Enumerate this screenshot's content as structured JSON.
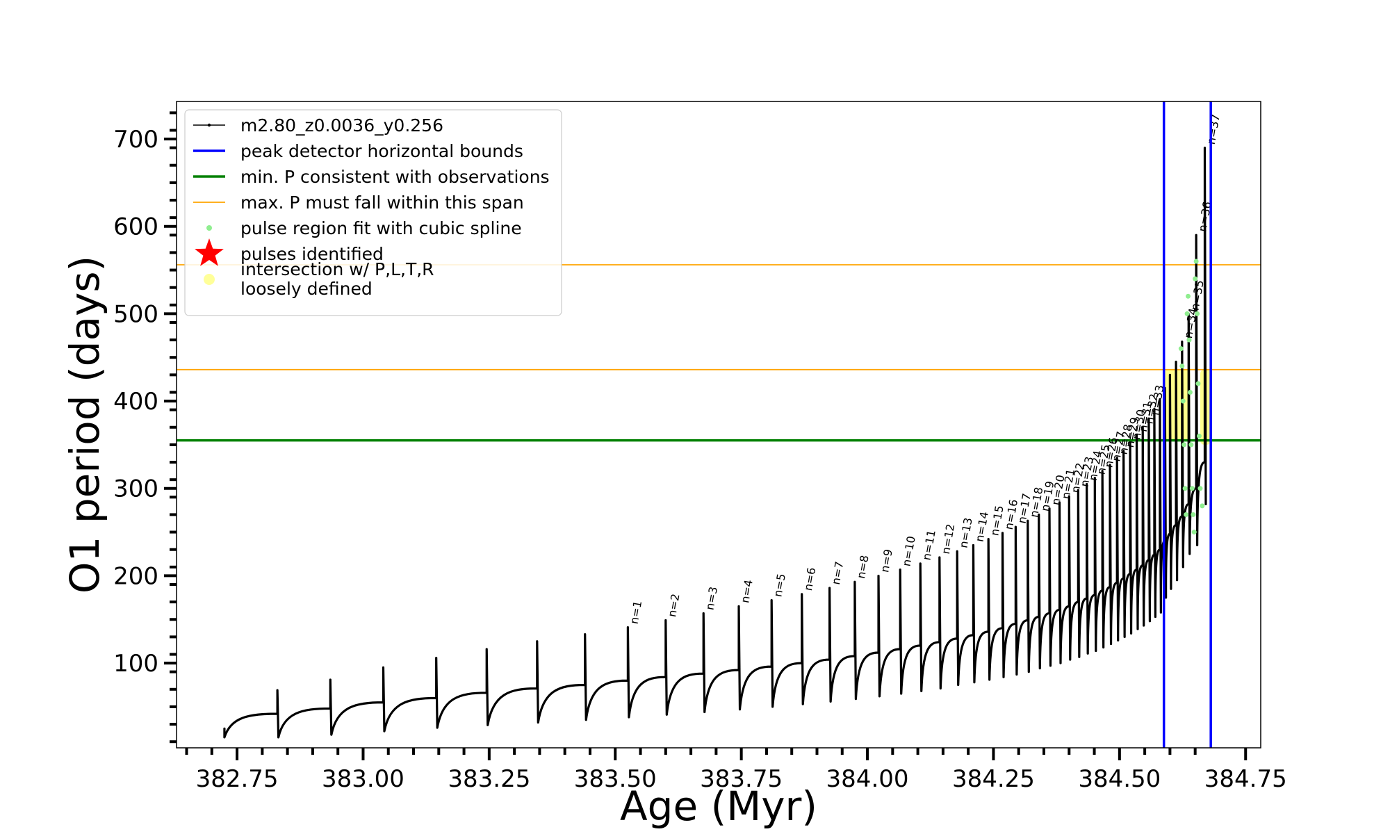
{
  "chart_data": {
    "type": "line",
    "xlabel": "Age (Myr)",
    "ylabel": "O1 period (days)",
    "xlim": [
      382.63,
      384.78
    ],
    "ylim": [
      3,
      743
    ],
    "x_ticks": [
      382.75,
      383.0,
      383.25,
      383.5,
      383.75,
      384.0,
      384.25,
      384.5,
      384.75
    ],
    "x_tick_labels": [
      "382.75",
      "383.00",
      "383.25",
      "383.50",
      "383.75",
      "384.00",
      "384.25",
      "384.50",
      "384.75"
    ],
    "y_ticks": [
      100,
      200,
      300,
      400,
      500,
      600,
      700
    ],
    "y_tick_labels": [
      "100",
      "200",
      "300",
      "400",
      "500",
      "600",
      "700"
    ],
    "grid": false,
    "legend_position": "top-left",
    "legend": [
      {
        "label": "m2.80_z0.0036_y0.256",
        "kind": "line-marker",
        "color": "#000000"
      },
      {
        "label": "peak detector horizontal bounds",
        "kind": "line",
        "color": "#0000ff"
      },
      {
        "label": "min. P consistent with observations",
        "kind": "line",
        "color": "#008000"
      },
      {
        "label": "max. P must fall within this span",
        "kind": "line",
        "color": "#ffa500"
      },
      {
        "label": "pulse region fit with cubic spline",
        "kind": "dot",
        "color": "#90ee90"
      },
      {
        "label": "pulses identified",
        "kind": "star",
        "color": "#ff0000"
      },
      {
        "label": "intersection w/ P,L,T,R",
        "label2": "loosely defined",
        "kind": "dot",
        "color": "#ffff99"
      }
    ],
    "vlines": [
      {
        "x": 384.588,
        "color": "#0000ff",
        "series": "peak detector horizontal bounds"
      },
      {
        "x": 384.681,
        "color": "#0000ff",
        "series": "peak detector horizontal bounds"
      }
    ],
    "hlines": [
      {
        "y": 355,
        "color": "#008000",
        "series": "min. P consistent with observations"
      },
      {
        "y": 436,
        "color": "#ffa500",
        "series": "max. P must fall within this span"
      },
      {
        "y": 556,
        "color": "#ffa500",
        "series": "max. P must fall within this span"
      }
    ],
    "series_name": "m2.80_z0.0036_y0.256",
    "series_color": "#000000",
    "track_start": {
      "x": 382.725,
      "y": 15
    },
    "pulses": [
      {
        "x": 382.83,
        "base": 42,
        "peak": 69,
        "dip": 15,
        "label": ""
      },
      {
        "x": 382.935,
        "base": 48,
        "peak": 81,
        "dip": 18,
        "label": ""
      },
      {
        "x": 383.04,
        "base": 55,
        "peak": 95,
        "dip": 22,
        "label": ""
      },
      {
        "x": 383.145,
        "base": 60,
        "peak": 106,
        "dip": 26,
        "label": ""
      },
      {
        "x": 383.245,
        "base": 66,
        "peak": 116,
        "dip": 29,
        "label": ""
      },
      {
        "x": 383.345,
        "base": 71,
        "peak": 125,
        "dip": 32,
        "label": ""
      },
      {
        "x": 383.44,
        "base": 75,
        "peak": 133,
        "dip": 35,
        "label": ""
      },
      {
        "x": 383.525,
        "base": 80,
        "peak": 141,
        "dip": 38,
        "label": "n=1"
      },
      {
        "x": 383.6,
        "base": 84,
        "peak": 149,
        "dip": 41,
        "label": "n=2"
      },
      {
        "x": 383.675,
        "base": 88,
        "peak": 157,
        "dip": 44,
        "label": "n=3"
      },
      {
        "x": 383.745,
        "base": 92,
        "peak": 165,
        "dip": 47,
        "label": "n=4"
      },
      {
        "x": 383.81,
        "base": 96,
        "peak": 172,
        "dip": 50,
        "label": "n=5"
      },
      {
        "x": 383.87,
        "base": 100,
        "peak": 179,
        "dip": 53,
        "label": "n=6"
      },
      {
        "x": 383.925,
        "base": 104,
        "peak": 186,
        "dip": 56,
        "label": "n=7"
      },
      {
        "x": 383.975,
        "base": 108,
        "peak": 193,
        "dip": 59,
        "label": "n=8"
      },
      {
        "x": 384.022,
        "base": 112,
        "peak": 200,
        "dip": 62,
        "label": "n=9"
      },
      {
        "x": 384.065,
        "base": 116,
        "peak": 207,
        "dip": 65,
        "label": "n=10"
      },
      {
        "x": 384.105,
        "base": 120,
        "peak": 214,
        "dip": 68,
        "label": "n=11"
      },
      {
        "x": 384.143,
        "base": 124,
        "peak": 221,
        "dip": 71,
        "label": "n=12"
      },
      {
        "x": 384.178,
        "base": 128,
        "peak": 228,
        "dip": 75,
        "label": "n=13"
      },
      {
        "x": 384.21,
        "base": 132,
        "peak": 235,
        "dip": 78,
        "label": "n=14"
      },
      {
        "x": 384.24,
        "base": 136,
        "peak": 242,
        "dip": 81,
        "label": "n=15"
      },
      {
        "x": 384.268,
        "base": 140,
        "peak": 249,
        "dip": 84,
        "label": "n=16"
      },
      {
        "x": 384.294,
        "base": 145,
        "peak": 256,
        "dip": 87,
        "label": "n=17"
      },
      {
        "x": 384.318,
        "base": 149,
        "peak": 263,
        "dip": 90,
        "label": "n=18"
      },
      {
        "x": 384.34,
        "base": 153,
        "peak": 270,
        "dip": 94,
        "label": "n=19"
      },
      {
        "x": 384.361,
        "base": 157,
        "peak": 277,
        "dip": 97,
        "label": "n=20"
      },
      {
        "x": 384.381,
        "base": 161,
        "peak": 284,
        "dip": 100,
        "label": "n=21"
      },
      {
        "x": 384.4,
        "base": 165,
        "peak": 291,
        "dip": 104,
        "label": "n=22"
      },
      {
        "x": 384.418,
        "base": 170,
        "peak": 298,
        "dip": 107,
        "label": "n=23"
      },
      {
        "x": 384.435,
        "base": 174,
        "peak": 305,
        "dip": 111,
        "label": "n=24"
      },
      {
        "x": 384.451,
        "base": 178,
        "peak": 312,
        "dip": 114,
        "label": "n=25"
      },
      {
        "x": 384.466,
        "base": 183,
        "peak": 320,
        "dip": 118,
        "label": "n=26"
      },
      {
        "x": 384.481,
        "base": 187,
        "peak": 327,
        "dip": 122,
        "label": "n=27"
      },
      {
        "x": 384.495,
        "base": 192,
        "peak": 335,
        "dip": 126,
        "label": "n=28"
      },
      {
        "x": 384.508,
        "base": 197,
        "peak": 343,
        "dip": 130,
        "label": "n=29"
      },
      {
        "x": 384.521,
        "base": 202,
        "peak": 352,
        "dip": 134,
        "label": "n=30"
      },
      {
        "x": 384.534,
        "base": 207,
        "peak": 361,
        "dip": 139,
        "label": "n=31"
      },
      {
        "x": 384.546,
        "base": 212,
        "peak": 370,
        "dip": 143,
        "label": "n=32"
      },
      {
        "x": 384.558,
        "base": 218,
        "peak": 380,
        "dip": 148,
        "label": "n=33"
      },
      {
        "x": 384.569,
        "base": 224,
        "peak": 391,
        "dip": 153,
        "label": ""
      },
      {
        "x": 384.58,
        "base": 230,
        "peak": 402,
        "dip": 158,
        "label": ""
      },
      {
        "x": 384.59,
        "base": 240,
        "peak": 415,
        "dip": 175,
        "label": ""
      },
      {
        "x": 384.6,
        "base": 248,
        "peak": 430,
        "dip": 185,
        "label": ""
      },
      {
        "x": 384.612,
        "base": 258,
        "peak": 445,
        "dip": 195,
        "label": ""
      },
      {
        "x": 384.624,
        "base": 268,
        "peak": 468,
        "dip": 210,
        "label": "n=34"
      },
      {
        "x": 384.637,
        "base": 282,
        "peak": 500,
        "dip": 225,
        "label": "n=35"
      },
      {
        "x": 384.652,
        "base": 300,
        "peak": 590,
        "dip": 235,
        "label": "n=36"
      },
      {
        "x": 384.669,
        "base": 330,
        "peak": 690,
        "dip": 282,
        "label": "n=37"
      }
    ],
    "spline_points": [
      {
        "x": 384.622,
        "y": 460
      },
      {
        "x": 384.624,
        "y": 440
      },
      {
        "x": 384.626,
        "y": 400
      },
      {
        "x": 384.628,
        "y": 350
      },
      {
        "x": 384.63,
        "y": 300
      },
      {
        "x": 384.632,
        "y": 270
      },
      {
        "x": 384.634,
        "y": 500
      },
      {
        "x": 384.636,
        "y": 520
      },
      {
        "x": 384.638,
        "y": 470
      },
      {
        "x": 384.64,
        "y": 410
      },
      {
        "x": 384.642,
        "y": 350
      },
      {
        "x": 384.644,
        "y": 300
      },
      {
        "x": 384.646,
        "y": 270
      },
      {
        "x": 384.648,
        "y": 250
      },
      {
        "x": 384.65,
        "y": 540
      },
      {
        "x": 384.652,
        "y": 560
      },
      {
        "x": 384.654,
        "y": 500
      },
      {
        "x": 384.656,
        "y": 420
      },
      {
        "x": 384.658,
        "y": 360
      },
      {
        "x": 384.66,
        "y": 300
      },
      {
        "x": 384.664,
        "y": 280
      }
    ],
    "intersection_region": [
      {
        "x0": 384.588,
        "x1": 384.64,
        "y0": 355,
        "y1": 436
      },
      {
        "x0": 384.66,
        "x1": 384.681,
        "y0": 350,
        "y1": 436
      }
    ]
  }
}
